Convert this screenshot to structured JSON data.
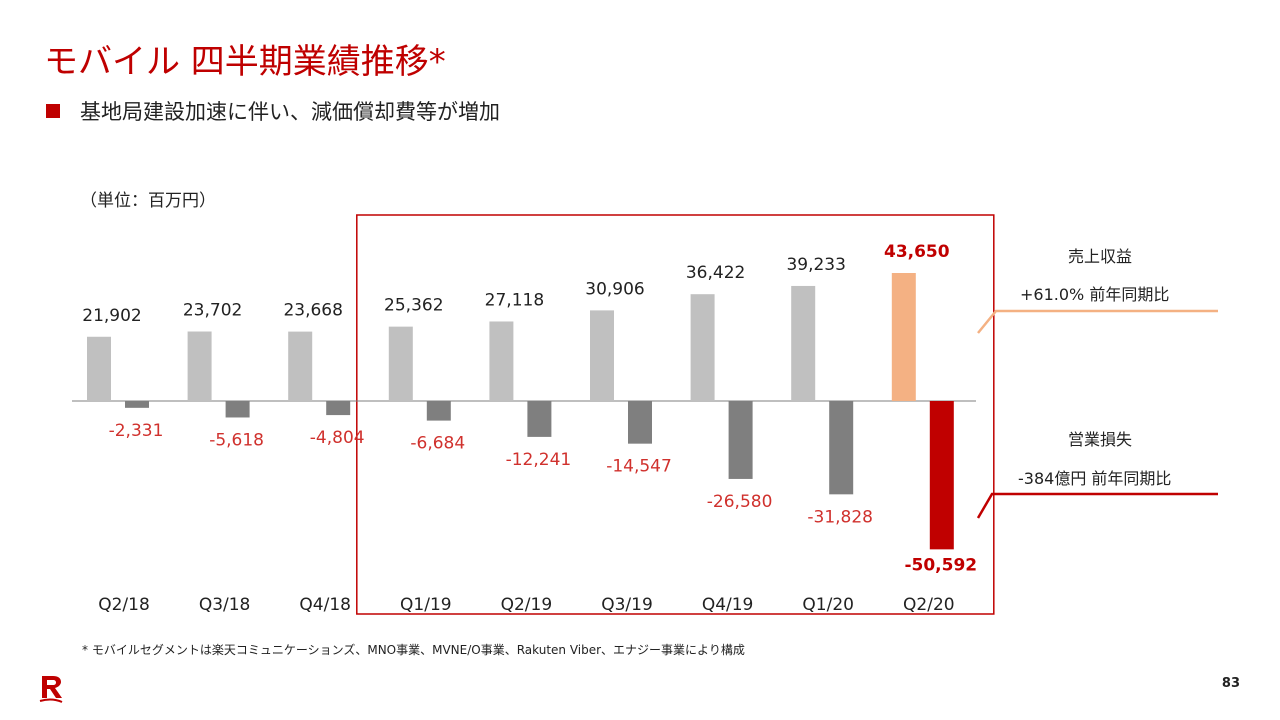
{
  "title": "モバイル 四半期業績推移*",
  "bullet": "基地局建設加速に伴い、減価償却費等が増加",
  "unit": "（単位：百万円）",
  "revenue_note": {
    "label": "売上収益",
    "change": "+61.0% 前年同期比"
  },
  "loss_note": {
    "label": "営業損失",
    "change": "-384億円 前年同期比"
  },
  "footnote": "* モバイルセグメントは楽天コミュニケーションズ、MNO事業、MVNE/O事業、Rakuten Viber、エナジー事業により構成",
  "page_number": "83",
  "colors": {
    "revenue": "#c0c0c0",
    "loss": "#7f7f7f",
    "revenue_highlight": "#f4b183",
    "loss_highlight": "#c00000",
    "loss_label": "#d0312d",
    "accent": "#bf0000"
  },
  "chart_data": {
    "type": "bar",
    "categories": [
      "Q2/18",
      "Q3/18",
      "Q4/18",
      "Q1/19",
      "Q2/19",
      "Q3/19",
      "Q4/19",
      "Q1/20",
      "Q2/20"
    ],
    "series": [
      {
        "values": [
          21902,
          23702,
          23668,
          25362,
          27118,
          30906,
          36422,
          39233,
          43650
        ]
      },
      {
        "values": [
          -2331,
          -5618,
          -4804,
          -6684,
          -12241,
          -14547,
          -26580,
          -31828,
          -50592
        ]
      }
    ],
    "value_labels": {
      "revenue": [
        "21,902",
        "23,702",
        "23,668",
        "25,362",
        "27,118",
        "30,906",
        "36,422",
        "39,233",
        "43,650"
      ],
      "loss": [
        "-2,331",
        "-5,618",
        "-4,804",
        "-6,684",
        "-12,241",
        "-14,547",
        "-26,580",
        "-31,828",
        "-50,592"
      ]
    },
    "highlight_last": true,
    "highlight_box_categories": [
      "Q1/19",
      "Q2/19",
      "Q3/19",
      "Q4/19",
      "Q1/20",
      "Q2/20"
    ]
  }
}
